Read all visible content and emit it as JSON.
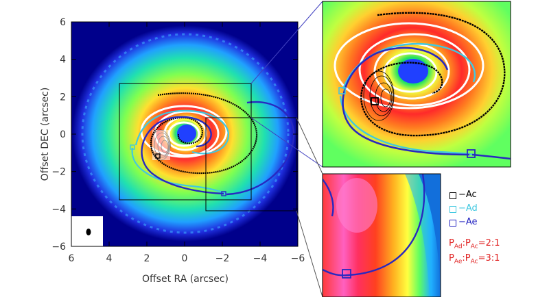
{
  "main_panel": {
    "xlabel": "Offset RA (arcsec)",
    "ylabel": "Offset DEC (arcsec)",
    "x_ticks": [
      "6",
      "4",
      "2",
      "0",
      "−2",
      "−4",
      "−6"
    ],
    "y_ticks": [
      "6",
      "4",
      "2",
      "0",
      "−2",
      "−4",
      "−6"
    ],
    "x_range": [
      6,
      -6
    ],
    "y_range": [
      -6,
      6
    ]
  },
  "legend": {
    "items": [
      {
        "label": "−Ac",
        "color": "#000000"
      },
      {
        "label": "−Ad",
        "color": "#40c8e0"
      },
      {
        "label": "−Ae",
        "color": "#2020c0"
      }
    ]
  },
  "period_ratios": [
    {
      "a": "P",
      "a_sub": "Ad",
      "sep": ":",
      "b": "P",
      "b_sub": "Ac",
      "value": "=2:1"
    },
    {
      "a": "P",
      "a_sub": "Ae",
      "sep": ":",
      "b": "P",
      "b_sub": "Ac",
      "value": "=3:1"
    }
  ],
  "colors": {
    "background_sky": "#00008b",
    "spiral_black": "#000000",
    "spiral_cyan": "#40c8e0",
    "spiral_blue": "#2828c0",
    "ellipse_white": "#ffffff",
    "ratio_text": "#e02020"
  }
}
